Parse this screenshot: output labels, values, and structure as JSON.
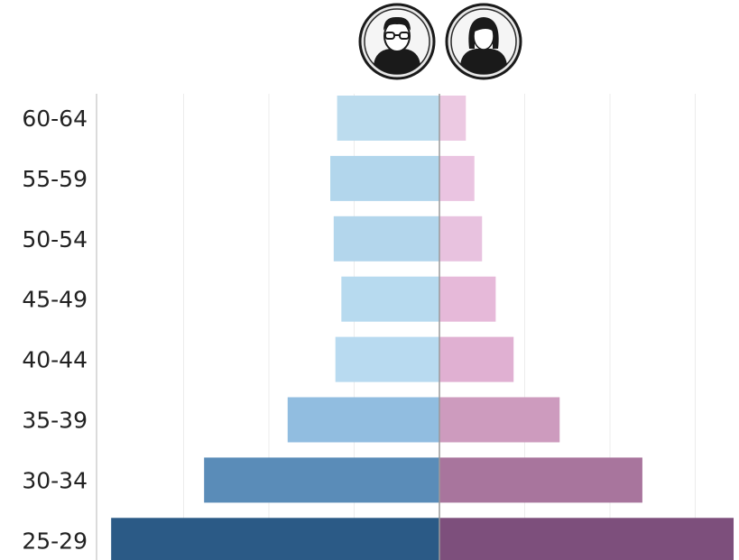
{
  "chart_data": {
    "type": "bar",
    "orientation": "horizontal-diverging",
    "categories": [
      "60-64",
      "55-59",
      "50-54",
      "45-49",
      "40-44",
      "35-39",
      "30-34",
      "25-29"
    ],
    "series": [
      {
        "icon": "male-avatar-icon",
        "values": [
          1.2,
          1.28,
          1.24,
          1.15,
          1.22,
          1.78,
          2.76,
          3.85
        ],
        "colors": [
          "#bcdcee",
          "#b2d6ec",
          "#b3d6ec",
          "#b7daef",
          "#b8daf0",
          "#91bde0",
          "#5a8cb8",
          "#2b5a86"
        ]
      },
      {
        "icon": "female-avatar-icon",
        "values": [
          0.31,
          0.41,
          0.5,
          0.66,
          0.87,
          1.41,
          2.38,
          3.45
        ],
        "colors": [
          "#ecc9e2",
          "#eac4e1",
          "#e8c2df",
          "#e6b9d9",
          "#e0b0d2",
          "#cd9bbe",
          "#a8759d",
          "#7d4f7c"
        ]
      }
    ],
    "xlim": [
      -4,
      4
    ],
    "grid": true,
    "legend": "icons-top-center"
  }
}
